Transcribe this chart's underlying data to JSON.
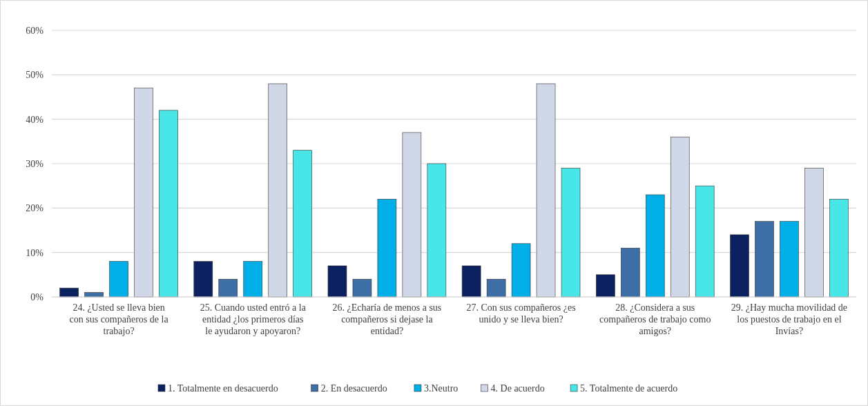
{
  "chart_data": {
    "type": "bar",
    "categories": [
      "24.  ¿Usted se lleva bien con sus compañeros de la trabajo?",
      "25.  Cuando usted entró a la entidad ¿los primeros días le ayudaron y apoyaron?",
      "26.  ¿Echaría de menos a sus compañeros si dejase la entidad?",
      "27.  Con sus compañeros ¿es unido y se lleva bien?",
      "28.  ¿Considera a sus compañeros de trabajo como amigos?",
      "29.  ¿Hay mucha movilidad de los puestos de trabajo en el Invías?"
    ],
    "series": [
      {
        "name": "1. Totalmente en desacuerdo",
        "color": "#0b2160",
        "values": [
          2,
          8,
          7,
          7,
          5,
          14
        ]
      },
      {
        "name": "2. En desacuerdo",
        "color": "#3d6fa6",
        "values": [
          1,
          4,
          4,
          4,
          11,
          17
        ]
      },
      {
        "name": "3.Neutro",
        "color": "#00aee8",
        "values": [
          8,
          8,
          22,
          12,
          23,
          17
        ]
      },
      {
        "name": "4. De acuerdo",
        "color": "#d0d8e8",
        "values": [
          47,
          48,
          37,
          48,
          36,
          29
        ]
      },
      {
        "name": "5. Totalmente de acuerdo",
        "color": "#48e6e6",
        "values": [
          42,
          33,
          30,
          29,
          25,
          22
        ]
      }
    ],
    "ylim": [
      0,
      60
    ],
    "yticks": [
      {
        "value": 0,
        "label": "0%"
      },
      {
        "value": 10,
        "label": "10%"
      },
      {
        "value": 20,
        "label": "20%"
      },
      {
        "value": 30,
        "label": "30%"
      },
      {
        "value": 40,
        "label": "40%"
      },
      {
        "value": 50,
        "label": "50%"
      },
      {
        "value": 60,
        "label": "60%"
      }
    ],
    "grid": "y",
    "legend": "bottom"
  }
}
